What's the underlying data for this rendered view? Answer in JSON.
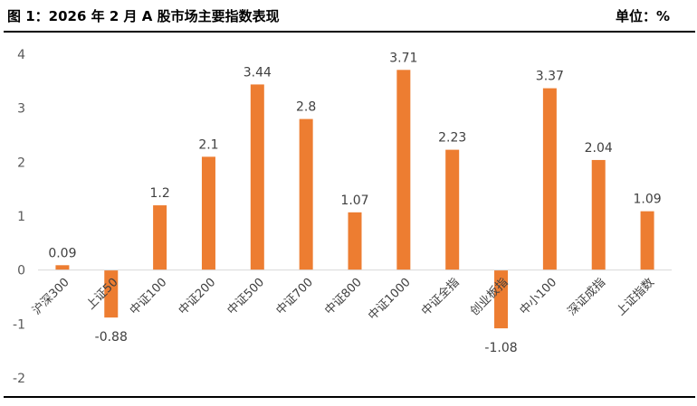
{
  "header": {
    "title": "图 1：2026 年 2 月 A 股市场主要指数表现",
    "unit": "单位：%"
  },
  "colors": {
    "bar": "#ED7D31",
    "axis": "#D9D9D9",
    "text": "#404040"
  },
  "chart_data": {
    "type": "bar",
    "title": "",
    "xlabel": "",
    "ylabel": "",
    "ylim": [
      -2,
      4
    ],
    "yticks": [
      -2,
      -1,
      0,
      1,
      2,
      3,
      4
    ],
    "grid": false,
    "legend": "none",
    "categories": [
      "沪深300",
      "上证50",
      "中证100",
      "中证200",
      "中证500",
      "中证700",
      "中证800",
      "中证1000",
      "中证全指",
      "创业板指",
      "中小100",
      "深证成指",
      "上证指数"
    ],
    "series": [
      {
        "values": [
          0.09,
          -0.88,
          1.2,
          2.1,
          3.44,
          2.8,
          1.07,
          3.71,
          2.23,
          -1.08,
          3.37,
          2.04,
          1.09
        ],
        "labels": [
          "0.09",
          "-0.88",
          "1.2",
          "2.1",
          "3.44",
          "2.8",
          "1.07",
          "3.71",
          "2.23",
          "-1.08",
          "3.37",
          "2.04",
          "1.09"
        ]
      }
    ]
  }
}
